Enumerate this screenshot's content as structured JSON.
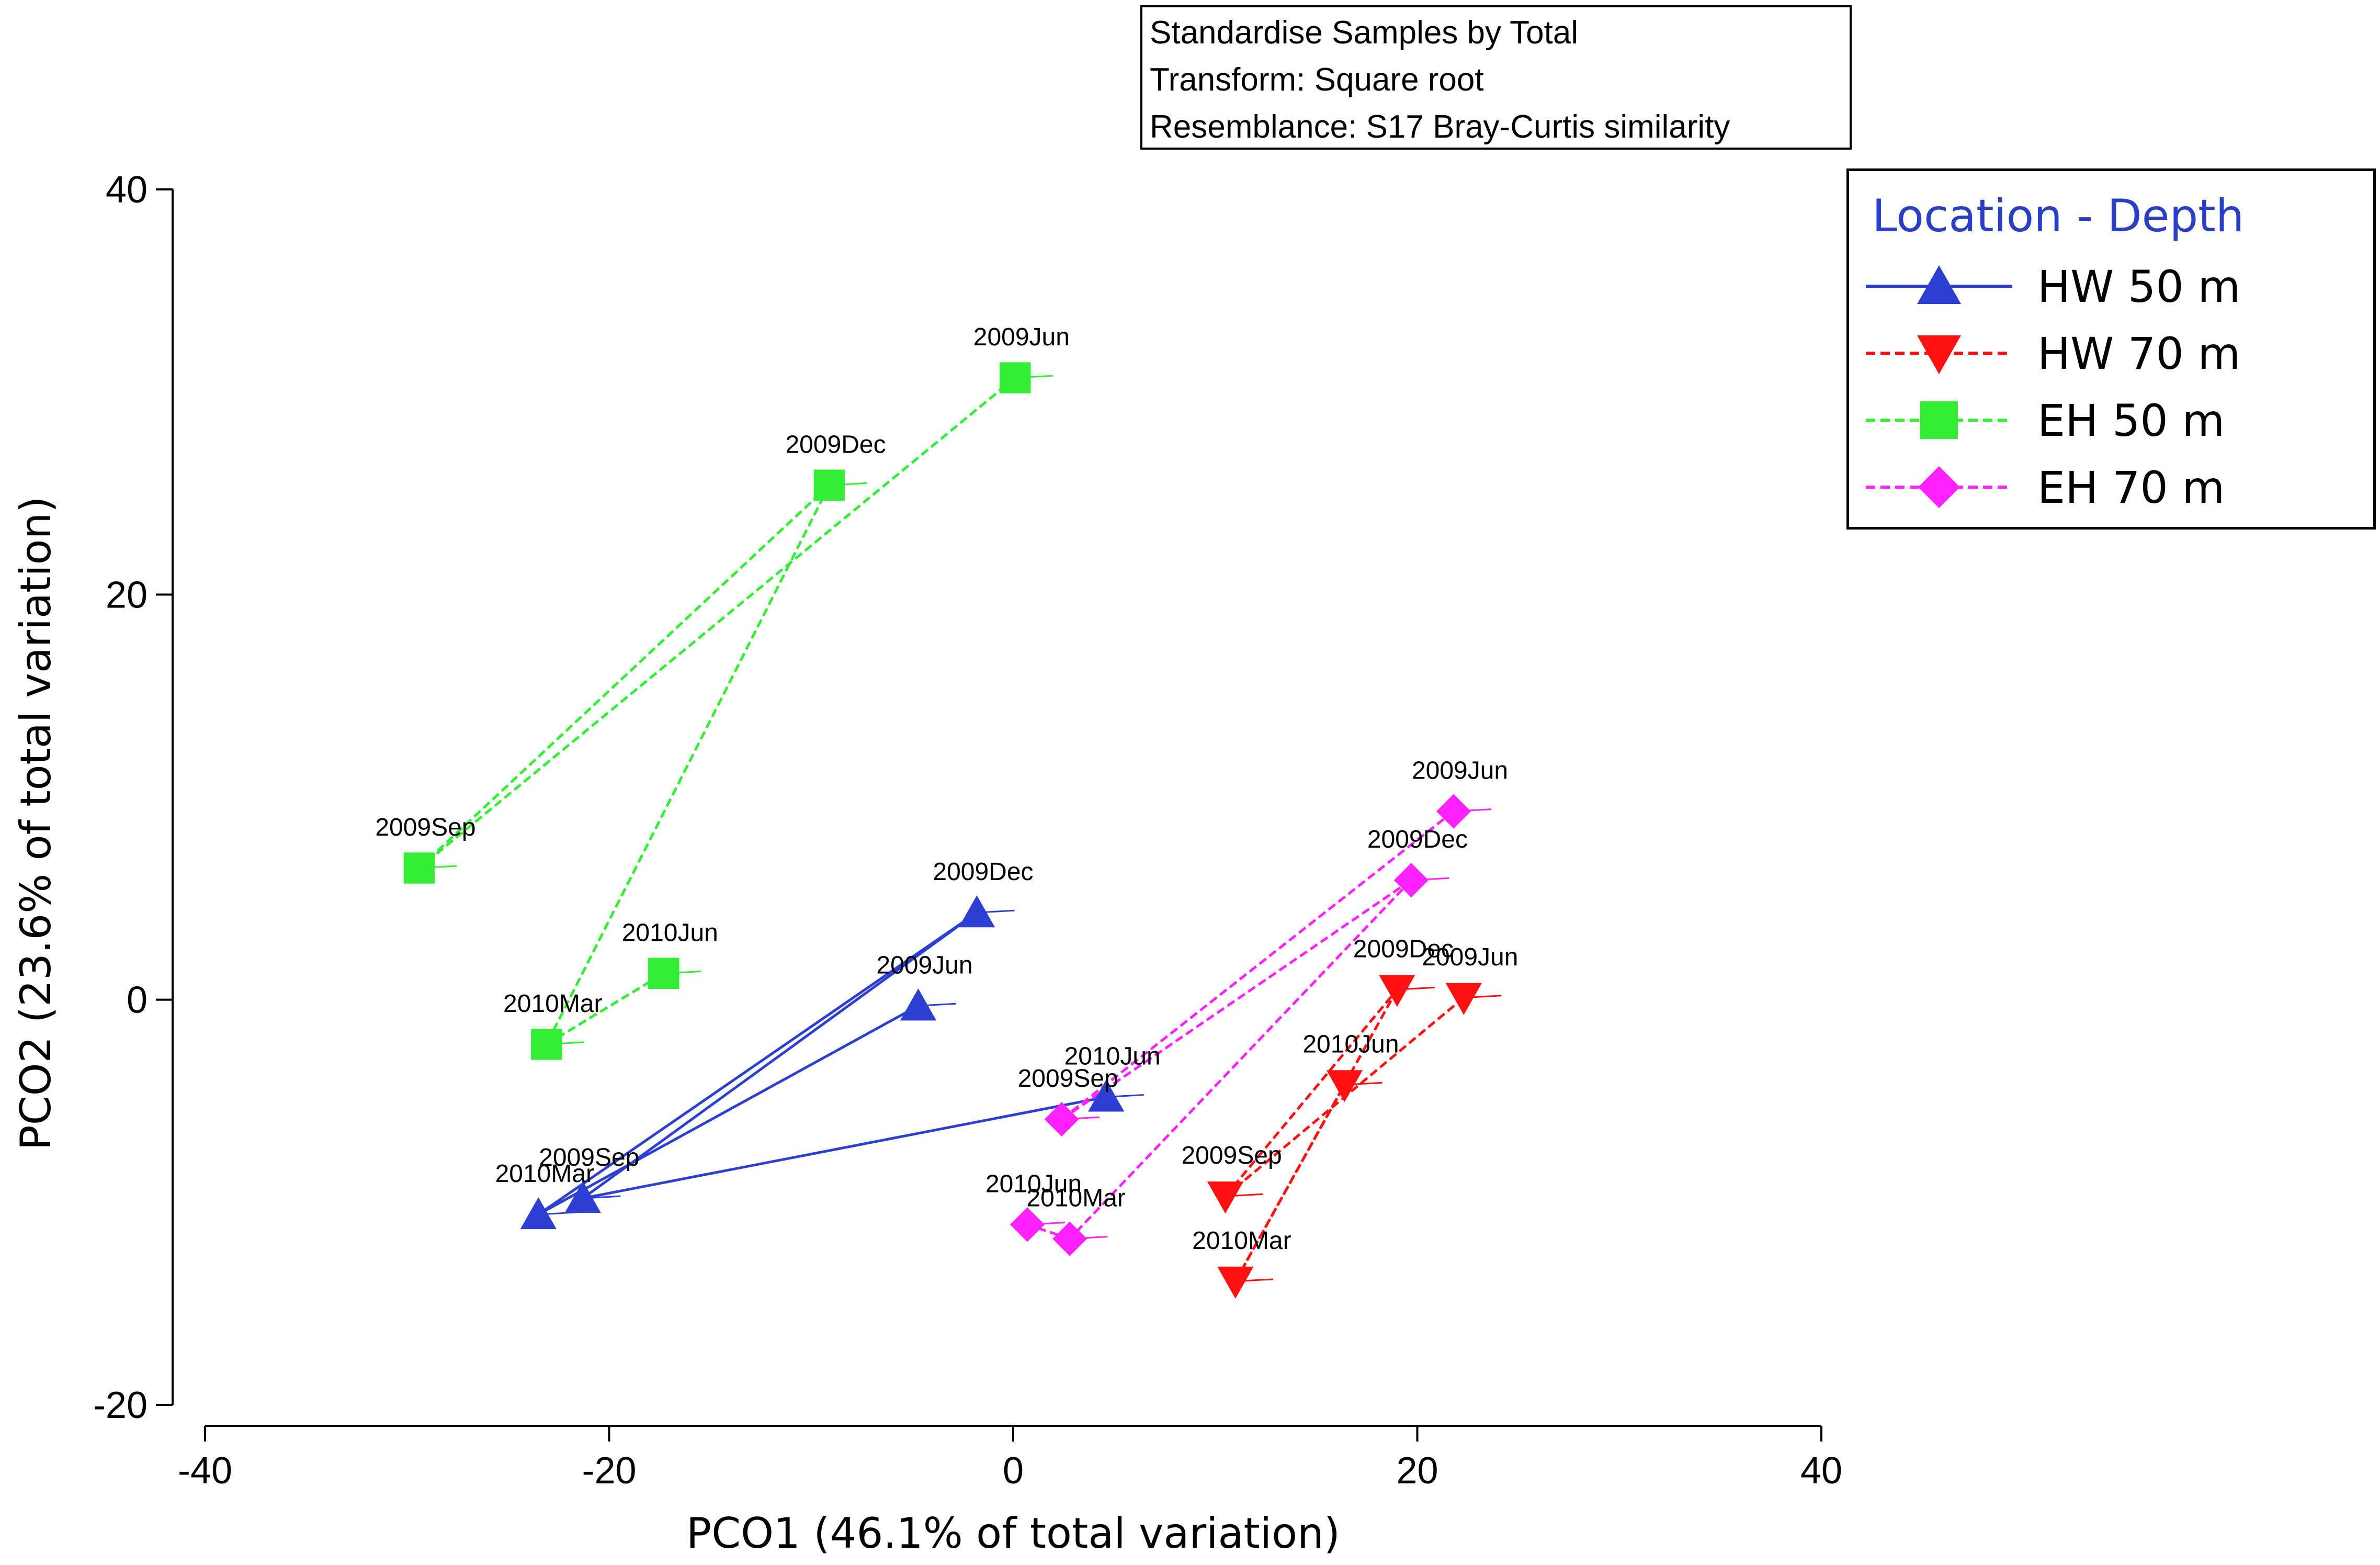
{
  "info_box": {
    "lines": [
      "Standardise Samples by Total",
      "Transform: Square root",
      "Resemblance: S17 Bray-Curtis similarity"
    ]
  },
  "legend": {
    "title": "Location - Depth",
    "entries": [
      {
        "label": "HW 50 m",
        "color": "#2c3fd0",
        "marker": "triangle-up",
        "line": "solid"
      },
      {
        "label": "HW 70 m",
        "color": "#ff1111",
        "marker": "triangle-down",
        "line": "dashed"
      },
      {
        "label": "EH 50 m",
        "color": "#33ee33",
        "marker": "square",
        "line": "dashed"
      },
      {
        "label": "EH 70 m",
        "color": "#ff22ff",
        "marker": "diamond",
        "line": "dashed"
      }
    ]
  },
  "chart_data": {
    "type": "scatter",
    "title": "",
    "xlabel": "PCO1 (46.1% of total variation)",
    "ylabel": "PCO2 (23.6% of total variation)",
    "xlim": [
      -40,
      40
    ],
    "ylim": [
      -20,
      40
    ],
    "xticks": [
      -40,
      -20,
      0,
      20,
      40
    ],
    "yticks": [
      -20,
      0,
      20,
      40
    ],
    "xtick_labels": [
      "-40",
      "-20",
      "0",
      "20",
      "40"
    ],
    "ytick_labels": [
      "-20",
      "0",
      "20",
      "40"
    ],
    "series": [
      {
        "name": "HW 50 m",
        "color": "#2c3fd0",
        "marker": "triangle-up",
        "line_style": "solid",
        "points": [
          {
            "label": "2009Jun",
            "x": -4.7,
            "y": -0.3
          },
          {
            "label": "2009Sep",
            "x": -21.3,
            "y": -9.8
          },
          {
            "label": "2009Dec",
            "x": -1.8,
            "y": 4.3
          },
          {
            "label": "2010Mar",
            "x": -23.5,
            "y": -10.6
          },
          {
            "label": "2010Jun",
            "x": 4.6,
            "y": -4.8
          }
        ],
        "path": [
          "2009Jun",
          "2010Mar",
          "2009Dec",
          "2009Sep",
          "2010Jun"
        ]
      },
      {
        "name": "HW 70 m",
        "color": "#ff1111",
        "marker": "triangle-down",
        "line_style": "dashed",
        "points": [
          {
            "label": "2009Jun",
            "x": 22.3,
            "y": 0.1
          },
          {
            "label": "2009Sep",
            "x": 10.5,
            "y": -9.7
          },
          {
            "label": "2009Dec",
            "x": 19.0,
            "y": 0.5
          },
          {
            "label": "2010Mar",
            "x": 11.0,
            "y": -13.9
          },
          {
            "label": "2010Jun",
            "x": 16.4,
            "y": -4.2
          }
        ],
        "path": [
          "2009Jun",
          "2009Sep",
          "2009Dec",
          "2010Mar",
          "2010Jun"
        ]
      },
      {
        "name": "EH 50 m",
        "color": "#33ee33",
        "marker": "square",
        "line_style": "dashed",
        "points": [
          {
            "label": "2009Jun",
            "x": 0.1,
            "y": 30.7
          },
          {
            "label": "2009Sep",
            "x": -29.4,
            "y": 6.5
          },
          {
            "label": "2009Dec",
            "x": -9.1,
            "y": 25.4
          },
          {
            "label": "2010Mar",
            "x": -23.1,
            "y": -2.2
          },
          {
            "label": "2010Jun",
            "x": -17.3,
            "y": 1.3
          }
        ],
        "path": [
          "2009Jun",
          "2009Sep",
          "2009Dec",
          "2010Mar",
          "2010Jun"
        ]
      },
      {
        "name": "EH 70 m",
        "color": "#ff22ff",
        "marker": "diamond",
        "line_style": "dashed",
        "points": [
          {
            "label": "2009Jun",
            "x": 21.8,
            "y": 9.3
          },
          {
            "label": "2009Sep",
            "x": 2.4,
            "y": -5.9
          },
          {
            "label": "2009Dec",
            "x": 19.7,
            "y": 5.9
          },
          {
            "label": "2010Mar",
            "x": 2.8,
            "y": -11.8
          },
          {
            "label": "2010Jun",
            "x": 0.7,
            "y": -11.1
          }
        ],
        "path": [
          "2009Jun",
          "2009Sep",
          "2009Dec",
          "2010Mar",
          "2010Jun"
        ]
      }
    ]
  }
}
